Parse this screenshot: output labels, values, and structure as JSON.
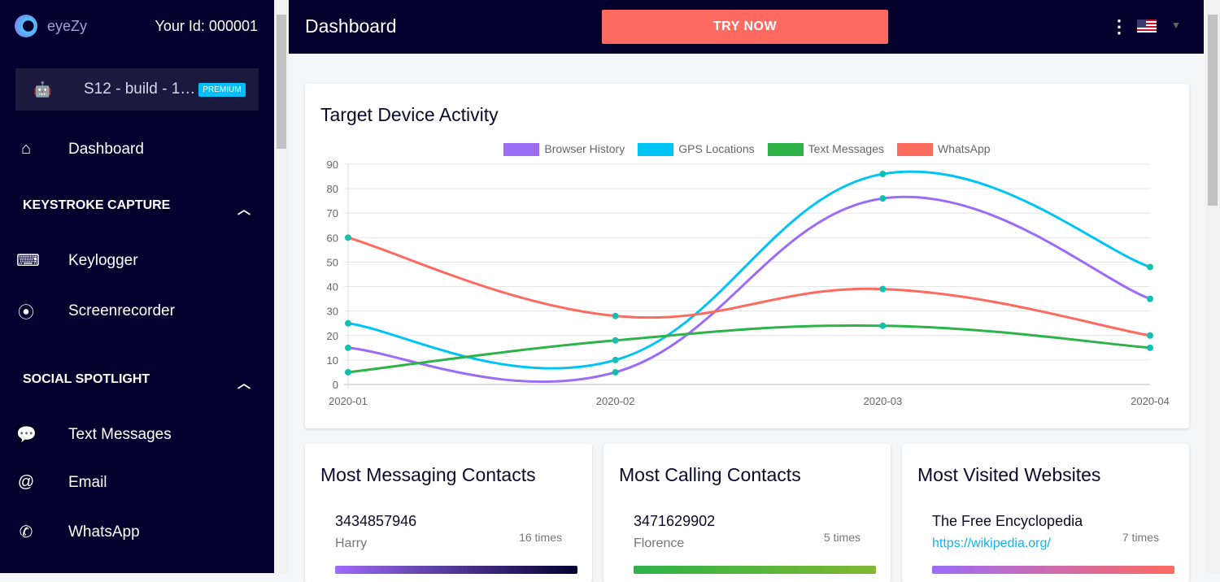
{
  "sidebar": {
    "brand": "eyeZy",
    "user_id": "Your Id: 000001",
    "device": {
      "name": "S12 - build - 1…",
      "badge": "PREMIUM",
      "icon": "android-icon"
    },
    "items": [
      {
        "label": "Dashboard",
        "icon": "home-icon"
      },
      {
        "label": "Keylogger",
        "icon": "keyboard-icon"
      },
      {
        "label": "Screenrecorder",
        "icon": "record-icon"
      },
      {
        "label": "Text Messages",
        "icon": "message-icon"
      },
      {
        "label": "Email",
        "icon": "at-icon"
      },
      {
        "label": "WhatsApp",
        "icon": "whatsapp-icon"
      }
    ],
    "sections": [
      "KEYSTROKE CAPTURE",
      "SOCIAL SPOTLIGHT"
    ]
  },
  "header": {
    "title": "Dashboard",
    "cta": "TRY NOW",
    "language": "en-US flag"
  },
  "activity": {
    "title": "Target Device Activity"
  },
  "chart_data": {
    "type": "line",
    "categories": [
      "2020-01",
      "2020-02",
      "2020-03",
      "2020-04"
    ],
    "ylim": [
      0,
      90
    ],
    "yticks": [
      0,
      10,
      20,
      30,
      40,
      50,
      60,
      70,
      80,
      90
    ],
    "grid": true,
    "legend": "top",
    "series": [
      {
        "name": "Browser History",
        "color": "#9c6cf8",
        "values": [
          15,
          5,
          76,
          35
        ]
      },
      {
        "name": "GPS Locations",
        "color": "#00c4f5",
        "values": [
          25,
          10,
          86,
          48
        ]
      },
      {
        "name": "Text Messages",
        "color": "#2db34a",
        "values": [
          5,
          18,
          24,
          15
        ]
      },
      {
        "name": "WhatsApp",
        "color": "#ff6a60",
        "values": [
          60,
          28,
          39,
          20
        ]
      }
    ],
    "point_color": "#13bfae"
  },
  "cards": [
    {
      "title": "Most Messaging Contacts",
      "main": "3434857946",
      "sub": "Harry",
      "count": "16 times"
    },
    {
      "title": "Most Calling Contacts",
      "main": "3471629902",
      "sub": "Florence",
      "count": "5 times"
    },
    {
      "title": "Most Visited Websites",
      "main": "The Free Encyclopedia",
      "sub": "https://wikipedia.org/",
      "count": "7 times"
    }
  ]
}
